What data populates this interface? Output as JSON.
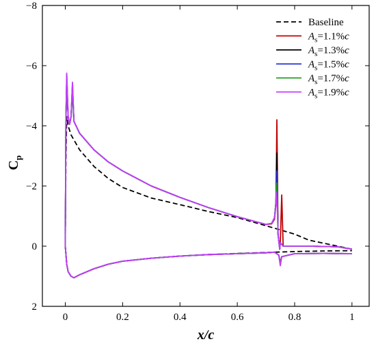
{
  "chart_data": {
    "type": "line",
    "xlabel": "x/c",
    "ylabel": "C",
    "ylabel_subscript": "p",
    "xlim": [
      -0.08,
      1.06
    ],
    "ylim": [
      2,
      -8
    ],
    "y_inverted": true,
    "xticks": [
      0,
      0.2,
      0.4,
      0.6,
      0.8,
      1
    ],
    "xtick_labels": [
      "0",
      "0.2",
      "0.4",
      "0.6",
      "0.8",
      "1"
    ],
    "yticks": [
      2,
      0,
      -2,
      -4,
      -6,
      -8
    ],
    "ytick_labels": [
      "2",
      "0",
      "−2",
      "−4",
      "−6",
      "−8"
    ],
    "grid": false,
    "legend_position": "top-right",
    "series": [
      {
        "name": "Baseline",
        "color": "#000000",
        "dash": "dashed",
        "upper": [
          [
            0,
            0
          ],
          [
            0.002,
            -2.8
          ],
          [
            0.005,
            -4.3
          ],
          [
            0.01,
            -4.0
          ],
          [
            0.02,
            -3.7
          ],
          [
            0.05,
            -3.2
          ],
          [
            0.1,
            -2.65
          ],
          [
            0.15,
            -2.25
          ],
          [
            0.2,
            -1.95
          ],
          [
            0.3,
            -1.6
          ],
          [
            0.4,
            -1.38
          ],
          [
            0.5,
            -1.15
          ],
          [
            0.6,
            -0.95
          ],
          [
            0.7,
            -0.68
          ],
          [
            0.8,
            -0.4
          ],
          [
            0.85,
            -0.2
          ],
          [
            0.9,
            -0.1
          ],
          [
            0.95,
            0.0
          ],
          [
            1.0,
            0.1
          ]
        ],
        "lower": [
          [
            0,
            0
          ],
          [
            0.005,
            0.6
          ],
          [
            0.01,
            0.85
          ],
          [
            0.02,
            1.0
          ],
          [
            0.03,
            1.05
          ],
          [
            0.05,
            0.95
          ],
          [
            0.1,
            0.75
          ],
          [
            0.15,
            0.6
          ],
          [
            0.2,
            0.5
          ],
          [
            0.3,
            0.4
          ],
          [
            0.4,
            0.33
          ],
          [
            0.5,
            0.28
          ],
          [
            0.6,
            0.24
          ],
          [
            0.7,
            0.21
          ],
          [
            0.8,
            0.18
          ],
          [
            0.9,
            0.16
          ],
          [
            1.0,
            0.15
          ]
        ]
      },
      {
        "name": "1.1%c",
        "color": "#c00000",
        "dash": "solid",
        "upper": [
          [
            0,
            0
          ],
          [
            0.002,
            -4.2
          ],
          [
            0.005,
            -5.7
          ],
          [
            0.01,
            -4.3
          ],
          [
            0.015,
            -4.05
          ],
          [
            0.02,
            -4.3
          ],
          [
            0.025,
            -5.4
          ],
          [
            0.03,
            -4.15
          ],
          [
            0.05,
            -3.75
          ],
          [
            0.1,
            -3.2
          ],
          [
            0.15,
            -2.8
          ],
          [
            0.2,
            -2.5
          ],
          [
            0.3,
            -2.0
          ],
          [
            0.4,
            -1.62
          ],
          [
            0.5,
            -1.28
          ],
          [
            0.6,
            -0.98
          ],
          [
            0.7,
            -0.72
          ],
          [
            0.72,
            -0.74
          ],
          [
            0.73,
            -0.9
          ],
          [
            0.735,
            -1.4
          ],
          [
            0.738,
            -4.2
          ],
          [
            0.742,
            -0.4
          ],
          [
            0.745,
            -0.15
          ],
          [
            0.748,
            0.1
          ],
          [
            0.75,
            -0.12
          ],
          [
            0.755,
            -1.7
          ],
          [
            0.76,
            0.0
          ],
          [
            0.78,
            0.0
          ],
          [
            0.85,
            0.0
          ],
          [
            0.95,
            0.02
          ],
          [
            1.0,
            0.1
          ]
        ],
        "lower": [
          [
            0,
            0
          ],
          [
            0.005,
            0.6
          ],
          [
            0.01,
            0.85
          ],
          [
            0.02,
            1.0
          ],
          [
            0.03,
            1.05
          ],
          [
            0.05,
            0.95
          ],
          [
            0.1,
            0.75
          ],
          [
            0.15,
            0.6
          ],
          [
            0.2,
            0.5
          ],
          [
            0.3,
            0.4
          ],
          [
            0.4,
            0.33
          ],
          [
            0.5,
            0.28
          ],
          [
            0.6,
            0.25
          ],
          [
            0.7,
            0.22
          ],
          [
            0.73,
            0.2
          ],
          [
            0.745,
            0.3
          ],
          [
            0.75,
            0.55
          ],
          [
            0.755,
            0.35
          ],
          [
            0.8,
            0.25
          ],
          [
            0.9,
            0.24
          ],
          [
            1.0,
            0.25
          ]
        ]
      },
      {
        "name": "1.3%c",
        "color": "#000000",
        "dash": "solid",
        "upper": [
          [
            0,
            0
          ],
          [
            0.002,
            -4.2
          ],
          [
            0.005,
            -5.3
          ],
          [
            0.01,
            -4.3
          ],
          [
            0.015,
            -4.05
          ],
          [
            0.02,
            -4.3
          ],
          [
            0.025,
            -5.2
          ],
          [
            0.03,
            -4.15
          ],
          [
            0.05,
            -3.75
          ],
          [
            0.1,
            -3.2
          ],
          [
            0.15,
            -2.8
          ],
          [
            0.2,
            -2.5
          ],
          [
            0.3,
            -2.0
          ],
          [
            0.4,
            -1.62
          ],
          [
            0.5,
            -1.28
          ],
          [
            0.6,
            -0.98
          ],
          [
            0.7,
            -0.72
          ],
          [
            0.72,
            -0.76
          ],
          [
            0.73,
            -0.95
          ],
          [
            0.735,
            -1.5
          ],
          [
            0.738,
            -3.1
          ],
          [
            0.742,
            -0.4
          ],
          [
            0.745,
            -0.15
          ],
          [
            0.748,
            0.1
          ],
          [
            0.75,
            -0.12
          ],
          [
            0.76,
            0.0
          ],
          [
            0.78,
            0.0
          ],
          [
            0.85,
            0.0
          ],
          [
            0.95,
            0.02
          ],
          [
            1.0,
            0.1
          ]
        ],
        "lower": [
          [
            0,
            0
          ],
          [
            0.005,
            0.6
          ],
          [
            0.01,
            0.85
          ],
          [
            0.02,
            1.0
          ],
          [
            0.03,
            1.05
          ],
          [
            0.05,
            0.95
          ],
          [
            0.1,
            0.75
          ],
          [
            0.15,
            0.6
          ],
          [
            0.2,
            0.5
          ],
          [
            0.3,
            0.4
          ],
          [
            0.4,
            0.33
          ],
          [
            0.5,
            0.28
          ],
          [
            0.6,
            0.25
          ],
          [
            0.7,
            0.22
          ],
          [
            0.73,
            0.2
          ],
          [
            0.745,
            0.3
          ],
          [
            0.75,
            0.6
          ],
          [
            0.755,
            0.35
          ],
          [
            0.8,
            0.25
          ],
          [
            0.9,
            0.24
          ],
          [
            1.0,
            0.25
          ]
        ]
      },
      {
        "name": "1.5%c",
        "color": "#1f2fd6",
        "dash": "solid",
        "upper": [
          [
            0,
            0
          ],
          [
            0.002,
            -4.2
          ],
          [
            0.005,
            -5.5
          ],
          [
            0.01,
            -4.3
          ],
          [
            0.015,
            -4.05
          ],
          [
            0.02,
            -4.3
          ],
          [
            0.025,
            -5.3
          ],
          [
            0.03,
            -4.15
          ],
          [
            0.05,
            -3.75
          ],
          [
            0.1,
            -3.2
          ],
          [
            0.15,
            -2.8
          ],
          [
            0.2,
            -2.5
          ],
          [
            0.3,
            -2.0
          ],
          [
            0.4,
            -1.62
          ],
          [
            0.5,
            -1.28
          ],
          [
            0.6,
            -0.98
          ],
          [
            0.7,
            -0.72
          ],
          [
            0.72,
            -0.76
          ],
          [
            0.73,
            -0.95
          ],
          [
            0.735,
            -1.5
          ],
          [
            0.738,
            -2.5
          ],
          [
            0.742,
            -0.4
          ],
          [
            0.745,
            -0.15
          ],
          [
            0.748,
            0.1
          ],
          [
            0.75,
            -0.12
          ],
          [
            0.76,
            0.0
          ],
          [
            0.78,
            0.0
          ],
          [
            0.85,
            0.0
          ],
          [
            0.95,
            0.02
          ],
          [
            1.0,
            0.1
          ]
        ],
        "lower": [
          [
            0,
            0
          ],
          [
            0.005,
            0.6
          ],
          [
            0.01,
            0.85
          ],
          [
            0.02,
            1.0
          ],
          [
            0.03,
            1.05
          ],
          [
            0.05,
            0.95
          ],
          [
            0.1,
            0.75
          ],
          [
            0.15,
            0.6
          ],
          [
            0.2,
            0.5
          ],
          [
            0.3,
            0.4
          ],
          [
            0.4,
            0.33
          ],
          [
            0.5,
            0.28
          ],
          [
            0.6,
            0.25
          ],
          [
            0.7,
            0.22
          ],
          [
            0.73,
            0.2
          ],
          [
            0.745,
            0.3
          ],
          [
            0.75,
            0.6
          ],
          [
            0.755,
            0.35
          ],
          [
            0.8,
            0.25
          ],
          [
            0.9,
            0.24
          ],
          [
            1.0,
            0.25
          ]
        ]
      },
      {
        "name": "1.7%c",
        "color": "#2ca02c",
        "dash": "solid",
        "upper": [
          [
            0,
            0
          ],
          [
            0.002,
            -4.2
          ],
          [
            0.005,
            -5.6
          ],
          [
            0.01,
            -4.3
          ],
          [
            0.015,
            -4.05
          ],
          [
            0.02,
            -4.3
          ],
          [
            0.025,
            -5.35
          ],
          [
            0.03,
            -4.15
          ],
          [
            0.05,
            -3.75
          ],
          [
            0.1,
            -3.2
          ],
          [
            0.15,
            -2.8
          ],
          [
            0.2,
            -2.5
          ],
          [
            0.3,
            -2.0
          ],
          [
            0.4,
            -1.62
          ],
          [
            0.5,
            -1.28
          ],
          [
            0.6,
            -0.98
          ],
          [
            0.7,
            -0.72
          ],
          [
            0.72,
            -0.76
          ],
          [
            0.73,
            -0.95
          ],
          [
            0.735,
            -1.5
          ],
          [
            0.738,
            -2.1
          ],
          [
            0.742,
            -0.4
          ],
          [
            0.745,
            -0.15
          ],
          [
            0.748,
            0.1
          ],
          [
            0.75,
            -0.12
          ],
          [
            0.76,
            0.0
          ],
          [
            0.78,
            0.0
          ],
          [
            0.85,
            0.0
          ],
          [
            0.95,
            0.02
          ],
          [
            1.0,
            0.1
          ]
        ],
        "lower": [
          [
            0,
            0
          ],
          [
            0.005,
            0.6
          ],
          [
            0.01,
            0.85
          ],
          [
            0.02,
            1.0
          ],
          [
            0.03,
            1.05
          ],
          [
            0.05,
            0.95
          ],
          [
            0.1,
            0.75
          ],
          [
            0.15,
            0.6
          ],
          [
            0.2,
            0.5
          ],
          [
            0.3,
            0.4
          ],
          [
            0.4,
            0.33
          ],
          [
            0.5,
            0.28
          ],
          [
            0.6,
            0.25
          ],
          [
            0.7,
            0.22
          ],
          [
            0.73,
            0.2
          ],
          [
            0.745,
            0.3
          ],
          [
            0.75,
            0.6
          ],
          [
            0.755,
            0.35
          ],
          [
            0.8,
            0.25
          ],
          [
            0.9,
            0.24
          ],
          [
            1.0,
            0.25
          ]
        ]
      },
      {
        "name": "1.9%c",
        "color": "#c43bff",
        "dash": "solid",
        "upper": [
          [
            0,
            0
          ],
          [
            0.002,
            -4.2
          ],
          [
            0.005,
            -5.75
          ],
          [
            0.01,
            -4.3
          ],
          [
            0.015,
            -4.05
          ],
          [
            0.02,
            -4.3
          ],
          [
            0.025,
            -5.45
          ],
          [
            0.03,
            -4.15
          ],
          [
            0.05,
            -3.75
          ],
          [
            0.1,
            -3.2
          ],
          [
            0.15,
            -2.8
          ],
          [
            0.2,
            -2.5
          ],
          [
            0.3,
            -2.0
          ],
          [
            0.4,
            -1.62
          ],
          [
            0.5,
            -1.28
          ],
          [
            0.6,
            -0.98
          ],
          [
            0.7,
            -0.72
          ],
          [
            0.72,
            -0.76
          ],
          [
            0.73,
            -0.95
          ],
          [
            0.735,
            -1.4
          ],
          [
            0.738,
            -1.8
          ],
          [
            0.742,
            -0.4
          ],
          [
            0.745,
            -0.15
          ],
          [
            0.748,
            0.1
          ],
          [
            0.75,
            -0.12
          ],
          [
            0.76,
            0.0
          ],
          [
            0.78,
            0.0
          ],
          [
            0.85,
            0.0
          ],
          [
            0.95,
            0.02
          ],
          [
            1.0,
            0.1
          ]
        ],
        "lower": [
          [
            0,
            0
          ],
          [
            0.005,
            0.6
          ],
          [
            0.01,
            0.85
          ],
          [
            0.02,
            1.0
          ],
          [
            0.03,
            1.05
          ],
          [
            0.05,
            0.95
          ],
          [
            0.1,
            0.75
          ],
          [
            0.15,
            0.6
          ],
          [
            0.2,
            0.5
          ],
          [
            0.3,
            0.4
          ],
          [
            0.4,
            0.33
          ],
          [
            0.5,
            0.28
          ],
          [
            0.6,
            0.25
          ],
          [
            0.7,
            0.22
          ],
          [
            0.73,
            0.2
          ],
          [
            0.745,
            0.3
          ],
          [
            0.75,
            0.65
          ],
          [
            0.755,
            0.35
          ],
          [
            0.8,
            0.25
          ],
          [
            0.9,
            0.24
          ],
          [
            1.0,
            0.25
          ]
        ]
      }
    ],
    "legend": [
      {
        "label_italic": "",
        "label_sub": "",
        "label_rest": "Baseline"
      },
      {
        "label_italic": "A",
        "label_sub": "s",
        "label_rest": "=1.1%",
        "label_tail_italic": "c"
      },
      {
        "label_italic": "A",
        "label_sub": "s",
        "label_rest": "=1.3%",
        "label_tail_italic": "c"
      },
      {
        "label_italic": "A",
        "label_sub": "s",
        "label_rest": "=1.5%",
        "label_tail_italic": "c"
      },
      {
        "label_italic": "A",
        "label_sub": "s",
        "label_rest": "=1.7%",
        "label_tail_italic": "c"
      },
      {
        "label_italic": "A",
        "label_sub": "s",
        "label_rest": "=1.9%",
        "label_tail_italic": "c"
      }
    ]
  }
}
